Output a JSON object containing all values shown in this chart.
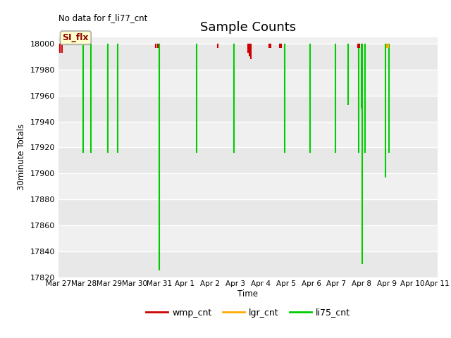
{
  "title": "Sample Counts",
  "top_left_text": "No data for f_li77_cnt",
  "ylabel": "30minute Totals",
  "xlabel": "Time",
  "legend_box_label": "SI_flx",
  "ylim": [
    17820,
    18005
  ],
  "yticks": [
    17820,
    17840,
    17860,
    17880,
    17900,
    17920,
    17940,
    17960,
    17980,
    18000
  ],
  "background_color": "#ffffff",
  "plot_bg_color_light": "#e8e8e8",
  "plot_bg_color_dark": "#d8d8d8",
  "grid_color": "#ffffff",
  "series": {
    "wmp_cnt": {
      "color": "#cc0000"
    },
    "lgr_cnt": {
      "color": "#ffaa00"
    },
    "li75_cnt": {
      "color": "#00cc00"
    }
  },
  "x_start": 0,
  "x_end": 15,
  "xtick_positions": [
    0,
    1,
    2,
    3,
    4,
    5,
    6,
    7,
    8,
    9,
    10,
    11,
    12,
    13,
    14,
    15
  ],
  "xtick_labels": [
    "Mar 27",
    "Mar 28",
    "Mar 29",
    "Mar 30",
    "Mar 31",
    "Apr 1",
    "Apr 2",
    "Apr 3",
    "Apr 4",
    "Apr 5",
    "Apr 6",
    "Apr 7",
    "Apr 8",
    "Apr 9",
    "Apr 10",
    "Apr 11"
  ],
  "wmp_cnt_data": [
    [
      0.05,
      18000,
      17993
    ],
    [
      0.12,
      18000,
      17993
    ],
    [
      3.85,
      18000,
      17997
    ],
    [
      3.92,
      18000,
      17997
    ],
    [
      6.3,
      18000,
      17997
    ],
    [
      7.5,
      18000,
      17993
    ],
    [
      7.55,
      18000,
      17990
    ],
    [
      7.6,
      18000,
      17988
    ],
    [
      8.35,
      18000,
      17997
    ],
    [
      8.4,
      18000,
      17997
    ],
    [
      8.75,
      18000,
      17997
    ],
    [
      8.8,
      18000,
      17997
    ],
    [
      11.85,
      18000,
      17997
    ],
    [
      11.9,
      18000,
      17997
    ]
  ],
  "lgr_cnt_data": [
    [
      13.0,
      18000,
      17997
    ],
    [
      13.05,
      18000,
      17997
    ]
  ],
  "li75_cnt_data": [
    [
      0.98,
      18000,
      17916
    ],
    [
      1.28,
      18000,
      17916
    ],
    [
      1.95,
      18000,
      17916
    ],
    [
      2.35,
      18000,
      17916
    ],
    [
      3.98,
      18000,
      17825
    ],
    [
      5.45,
      18000,
      17916
    ],
    [
      6.95,
      18000,
      17916
    ],
    [
      8.95,
      18000,
      17916
    ],
    [
      9.95,
      18000,
      17916
    ],
    [
      10.95,
      18000,
      17916
    ],
    [
      11.45,
      18000,
      17953
    ],
    [
      11.88,
      18000,
      17916
    ],
    [
      11.98,
      18000,
      17950
    ],
    [
      12.02,
      18000,
      17830
    ],
    [
      12.12,
      18000,
      17916
    ],
    [
      12.95,
      18000,
      17897
    ],
    [
      13.08,
      18000,
      17916
    ]
  ],
  "band_colors": [
    "#e8e8e8",
    "#f0f0f0"
  ],
  "band_yticks": [
    17820,
    17840,
    17860,
    17880,
    17900,
    17920,
    17940,
    17960,
    17980,
    18000,
    18005
  ]
}
